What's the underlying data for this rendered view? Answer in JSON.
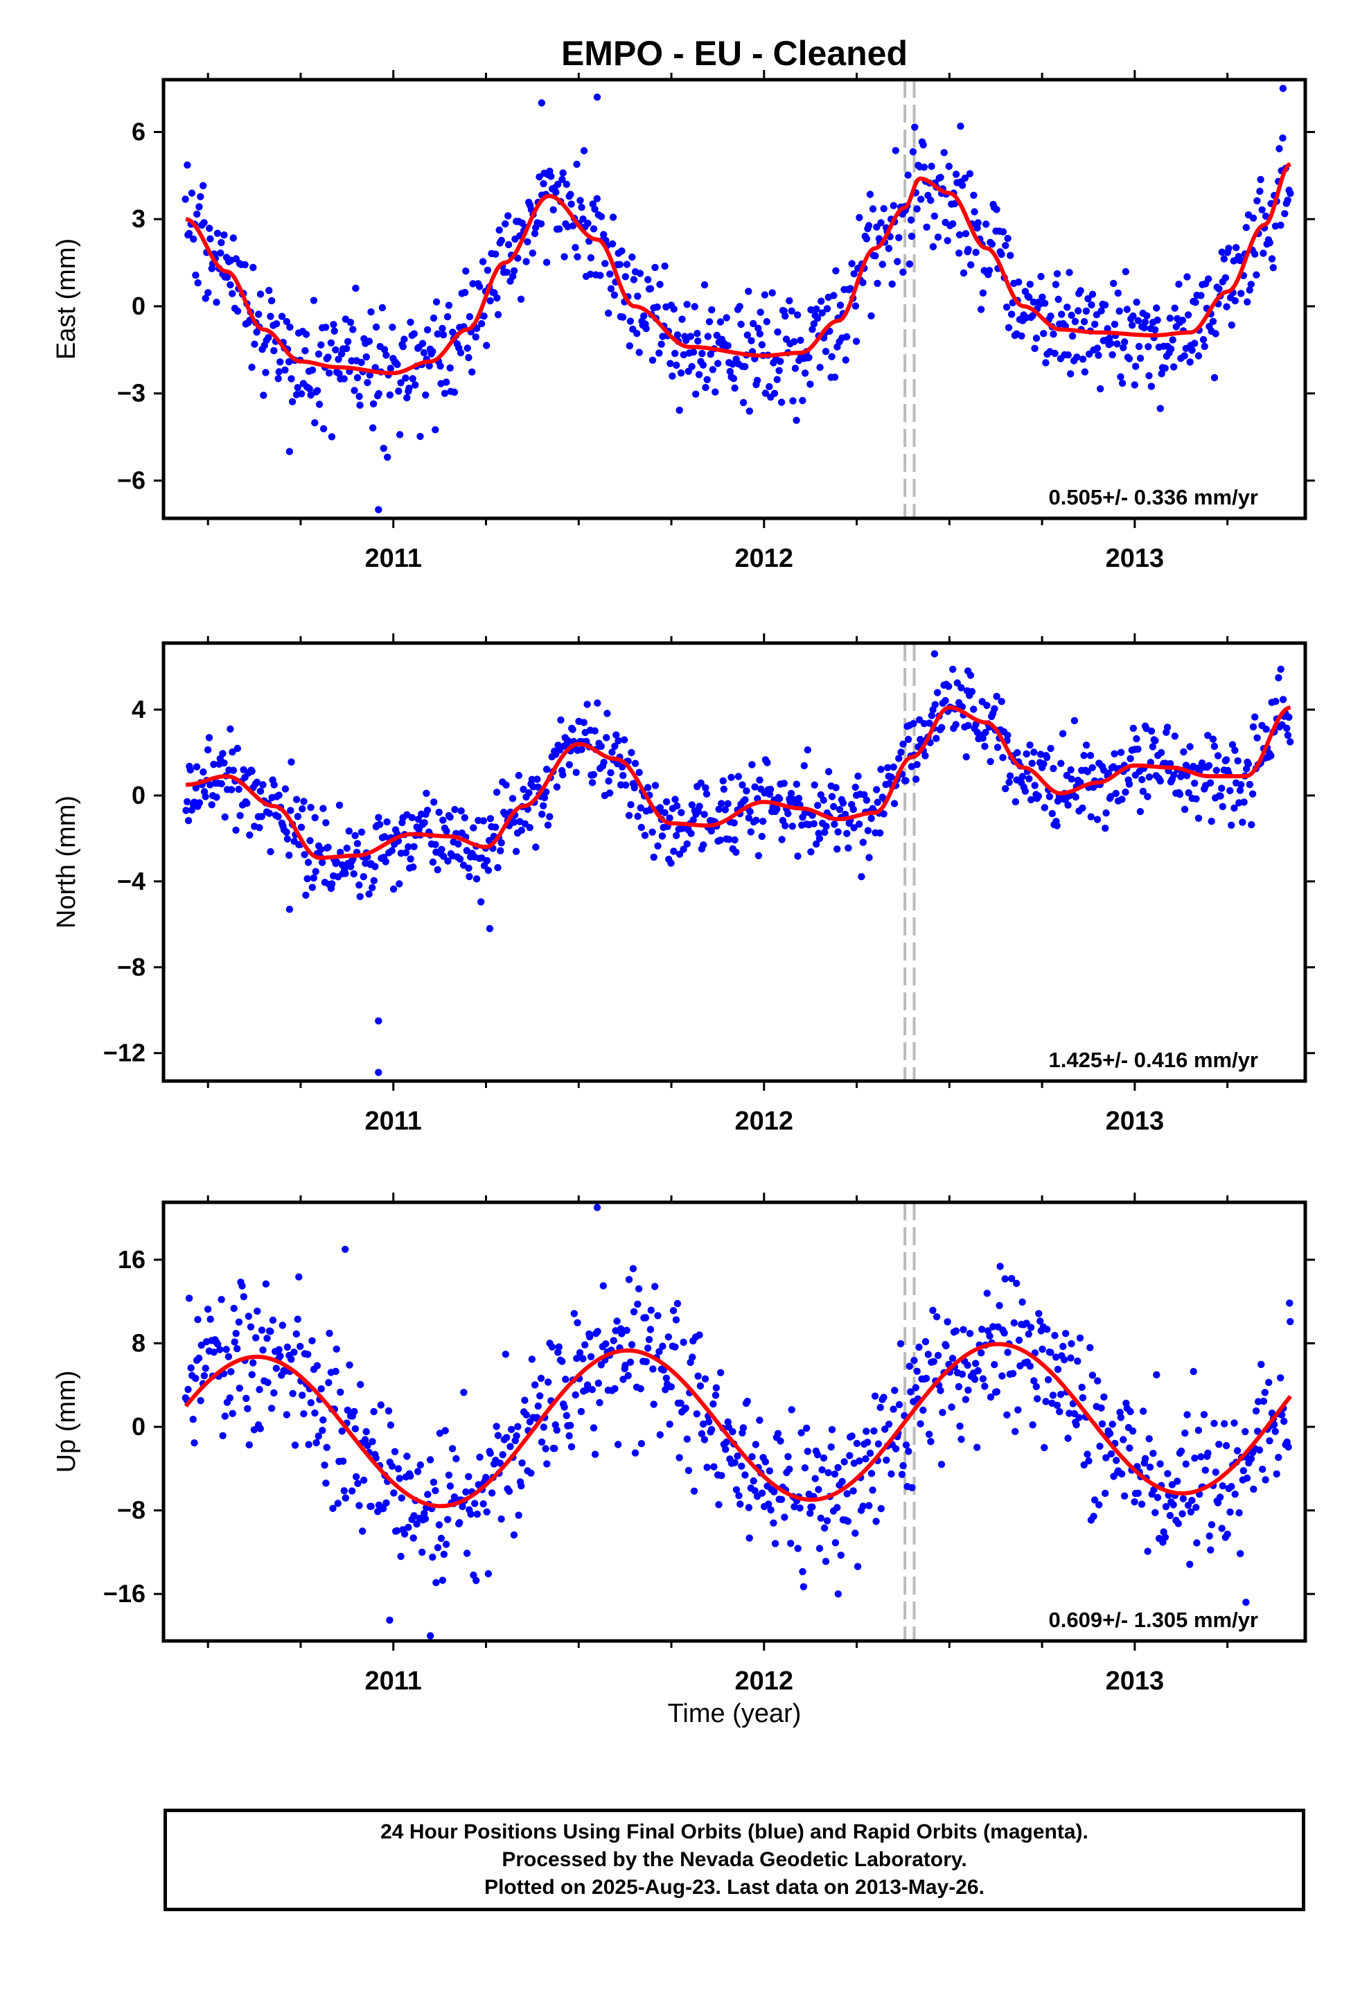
{
  "chart_data": [
    {
      "type": "scatter",
      "title": "EMPO  - EU - Cleaned",
      "ylabel": "East (mm)",
      "xlabel": "",
      "xlim": [
        2010.38,
        2013.46
      ],
      "ylim": [
        -7.3,
        7.8
      ],
      "x_ticks": [
        2011,
        2012,
        2013
      ],
      "x_tick_labels": [
        "2011",
        "2012",
        "2013"
      ],
      "y_ticks": [
        -6,
        -3,
        0,
        3,
        6
      ],
      "y_tick_labels": [
        "−6",
        "−3",
        "0",
        "3",
        "6"
      ],
      "rate_text": "0.505+/- 0.336 mm/yr",
      "event_lines": [
        2012.38,
        2012.405
      ],
      "model": {
        "x": [
          2010.44,
          2010.55,
          2010.65,
          2010.75,
          2010.85,
          2011.0,
          2011.1,
          2011.2,
          2011.3,
          2011.42,
          2011.55,
          2011.65,
          2011.8,
          2012.0,
          2012.1,
          2012.2,
          2012.3,
          2012.38,
          2012.42,
          2012.5,
          2012.6,
          2012.7,
          2012.8,
          2012.9,
          2013.05,
          2013.15,
          2013.25,
          2013.35,
          2013.42
        ],
        "y": [
          3.0,
          1.2,
          -0.8,
          -1.9,
          -2.1,
          -2.3,
          -1.9,
          -0.8,
          1.5,
          3.8,
          2.3,
          0.0,
          -1.4,
          -1.7,
          -1.6,
          -0.5,
          2.0,
          3.4,
          4.4,
          3.9,
          2.0,
          0.0,
          -0.8,
          -0.9,
          -1.0,
          -0.9,
          0.5,
          2.8,
          4.9
        ]
      },
      "points": {
        "x_range": [
          2010.44,
          2013.42
        ],
        "approx_count": 900,
        "scatter_mm": 1.0,
        "outliers": [
          {
            "x": 2010.96,
            "y": -7.0
          },
          {
            "x": 2011.4,
            "y": 7.0
          },
          {
            "x": 2011.55,
            "y": 7.2
          },
          {
            "x": 2012.53,
            "y": 6.2
          },
          {
            "x": 2013.4,
            "y": 7.5
          },
          {
            "x": 2010.72,
            "y": -5.0
          }
        ]
      }
    },
    {
      "type": "scatter",
      "title": "",
      "ylabel": "North (mm)",
      "xlabel": "",
      "xlim": [
        2010.38,
        2013.46
      ],
      "ylim": [
        -13.3,
        7.1
      ],
      "x_ticks": [
        2011,
        2012,
        2013
      ],
      "x_tick_labels": [
        "2011",
        "2012",
        "2013"
      ],
      "y_ticks": [
        -12,
        -8,
        -4,
        0,
        4
      ],
      "y_tick_labels": [
        "−12",
        "−8",
        "−4",
        "0",
        "4"
      ],
      "rate_text": "1.425+/- 0.416 mm/yr",
      "event_lines": [
        2012.38,
        2012.405
      ],
      "model": {
        "x": [
          2010.44,
          2010.55,
          2010.68,
          2010.8,
          2010.9,
          2011.05,
          2011.15,
          2011.25,
          2011.35,
          2011.5,
          2011.6,
          2011.75,
          2011.85,
          2012.0,
          2012.1,
          2012.2,
          2012.3,
          2012.4,
          2012.5,
          2012.6,
          2012.7,
          2012.8,
          2012.9,
          2013.0,
          2013.1,
          2013.2,
          2013.3,
          2013.42
        ],
        "y": [
          0.5,
          0.9,
          -0.5,
          -2.9,
          -2.8,
          -1.8,
          -1.9,
          -2.4,
          -0.5,
          2.4,
          1.7,
          -1.3,
          -1.4,
          -0.3,
          -0.6,
          -1.1,
          -0.8,
          1.8,
          4.1,
          3.4,
          1.3,
          0.1,
          0.6,
          1.4,
          1.3,
          0.9,
          0.9,
          4.1
        ]
      },
      "points": {
        "x_range": [
          2010.44,
          2013.42
        ],
        "approx_count": 900,
        "scatter_mm": 1.0,
        "outliers": [
          {
            "x": 2010.96,
            "y": -10.5
          },
          {
            "x": 2010.96,
            "y": -12.9
          },
          {
            "x": 2011.26,
            "y": -6.2
          },
          {
            "x": 2010.72,
            "y": -5.3
          },
          {
            "x": 2012.46,
            "y": 6.6
          },
          {
            "x": 2012.55,
            "y": 5.8
          }
        ]
      }
    },
    {
      "type": "scatter",
      "title": "",
      "ylabel": "Up (mm)",
      "xlabel": "Time (year)",
      "xlim": [
        2010.38,
        2013.46
      ],
      "ylim": [
        -20.5,
        21.5
      ],
      "x_ticks": [
        2011,
        2012,
        2013
      ],
      "x_tick_labels": [
        "2011",
        "2012",
        "2013"
      ],
      "y_ticks": [
        -16,
        -8,
        0,
        8,
        16
      ],
      "y_tick_labels": [
        "−16",
        "−8",
        "0",
        "8",
        "16"
      ],
      "rate_text": "0.609+/- 1.305 mm/yr",
      "event_lines": [
        2012.38,
        2012.405
      ],
      "model": {
        "sinusoid": true,
        "x_start": 2010.44,
        "x_end": 2013.42,
        "mean": 0.2,
        "amplitude": 7.3,
        "phase_peak": 2010.63,
        "trend_per_year": 0.609,
        "annual_period": 1.0
      },
      "points": {
        "x_range": [
          2010.44,
          2013.42
        ],
        "approx_count": 900,
        "scatter_mm": 3.8,
        "outliers": [
          {
            "x": 2011.55,
            "y": 21.0
          },
          {
            "x": 2011.1,
            "y": -20.0
          },
          {
            "x": 2010.99,
            "y": -18.5
          },
          {
            "x": 2012.2,
            "y": -16.0
          },
          {
            "x": 2013.3,
            "y": -16.8
          },
          {
            "x": 2010.87,
            "y": 17.0
          }
        ]
      }
    }
  ],
  "footer": {
    "line1": "24 Hour Positions Using Final Orbits (blue) and Rapid Orbits (magenta).",
    "line2": "Processed by the Nevada Geodetic Laboratory.",
    "line3": "Plotted on 2025-Aug-23. Last data on 2013-May-26."
  },
  "colors": {
    "points": "#0000ff",
    "model": "#ff0000",
    "event_line": "#bbbbbb",
    "frame": "#000000"
  }
}
